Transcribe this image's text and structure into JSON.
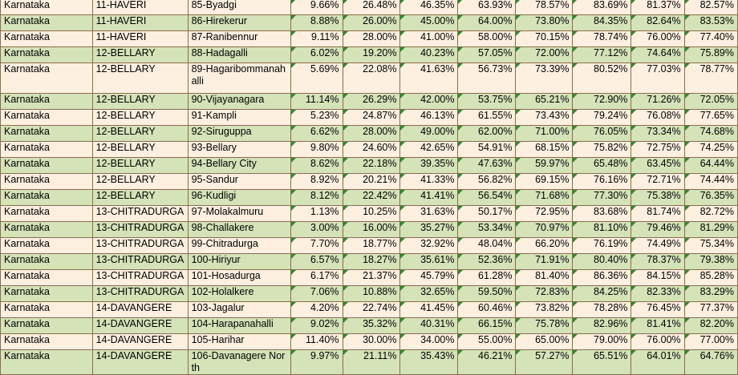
{
  "table": {
    "rows": [
      [
        "Karnataka",
        "11-HAVERI",
        "85-Byadgi",
        "9.66%",
        "26.48%",
        "46.35%",
        "63.93%",
        "78.57%",
        "83.69%",
        "81.37%",
        "82.57%"
      ],
      [
        "Karnataka",
        "11-HAVERI",
        "86-Hirekerur",
        "8.88%",
        "26.00%",
        "45.00%",
        "64.00%",
        "73.80%",
        "84.35%",
        "82.64%",
        "83.53%"
      ],
      [
        "Karnataka",
        "11-HAVERI",
        "87-Ranibennur",
        "9.11%",
        "28.00%",
        "41.00%",
        "58.00%",
        "70.15%",
        "78.74%",
        "76.00%",
        "77.40%"
      ],
      [
        "Karnataka",
        "12-BELLARY",
        "88-Hadagalli",
        "6.02%",
        "19.20%",
        "40.23%",
        "57.05%",
        "72.00%",
        "77.12%",
        "74.64%",
        "75.89%"
      ],
      [
        "Karnataka",
        "12-BELLARY",
        "89-Hagaribommanahalli",
        "5.69%",
        "22.08%",
        "41.63%",
        "56.73%",
        "73.39%",
        "80.52%",
        "77.03%",
        "78.77%"
      ],
      [
        "Karnataka",
        "12-BELLARY",
        "90-Vijayanagara",
        "11.14%",
        "26.29%",
        "42.00%",
        "53.75%",
        "65.21%",
        "72.90%",
        "71.26%",
        "72.05%"
      ],
      [
        "Karnataka",
        "12-BELLARY",
        "91-Kampli",
        "5.23%",
        "24.87%",
        "46.13%",
        "61.55%",
        "73.43%",
        "79.24%",
        "76.08%",
        "77.65%"
      ],
      [
        "Karnataka",
        "12-BELLARY",
        "92-Siruguppa",
        "6.62%",
        "28.00%",
        "49.00%",
        "62.00%",
        "71.00%",
        "76.05%",
        "73.34%",
        "74.68%"
      ],
      [
        "Karnataka",
        "12-BELLARY",
        "93-Bellary",
        "9.80%",
        "24.60%",
        "42.65%",
        "54.91%",
        "68.15%",
        "75.82%",
        "72.75%",
        "74.25%"
      ],
      [
        "Karnataka",
        "12-BELLARY",
        "94-Bellary City",
        "8.62%",
        "22.18%",
        "39.35%",
        "47.63%",
        "59.97%",
        "65.48%",
        "63.45%",
        "64.44%"
      ],
      [
        "Karnataka",
        "12-BELLARY",
        "95-Sandur",
        "8.92%",
        "20.21%",
        "41.33%",
        "56.82%",
        "69.15%",
        "76.16%",
        "72.71%",
        "74.44%"
      ],
      [
        "Karnataka",
        "12-BELLARY",
        "96-Kudligi",
        "8.12%",
        "22.42%",
        "41.41%",
        "56.54%",
        "71.68%",
        "77.30%",
        "75.38%",
        "76.35%"
      ],
      [
        "Karnataka",
        "13-CHITRADURGA",
        "97-Molakalmuru",
        "1.13%",
        "10.25%",
        "31.63%",
        "50.17%",
        "72.95%",
        "83.68%",
        "81.74%",
        "82.72%"
      ],
      [
        "Karnataka",
        "13-CHITRADURGA",
        "98-Challakere",
        "3.00%",
        "16.00%",
        "35.27%",
        "53.34%",
        "70.97%",
        "81.10%",
        "79.46%",
        "81.29%"
      ],
      [
        "Karnataka",
        "13-CHITRADURGA",
        "99-Chitradurga",
        "7.70%",
        "18.77%",
        "32.92%",
        "48.04%",
        "66.20%",
        "76.19%",
        "74.49%",
        "75.34%"
      ],
      [
        "Karnataka",
        "13-CHITRADURGA",
        "100-Hiriyur",
        "6.57%",
        "18.27%",
        "35.61%",
        "52.36%",
        "71.91%",
        "80.40%",
        "78.37%",
        "79.38%"
      ],
      [
        "Karnataka",
        "13-CHITRADURGA",
        "101-Hosadurga",
        "6.17%",
        "21.37%",
        "45.79%",
        "61.28%",
        "81.40%",
        "86.36%",
        "84.15%",
        "85.28%"
      ],
      [
        "Karnataka",
        "13-CHITRADURGA",
        "102-Holalkere",
        "7.06%",
        "10.88%",
        "32.65%",
        "59.50%",
        "72.83%",
        "84.25%",
        "82.33%",
        "83.29%"
      ],
      [
        "Karnataka",
        "14-DAVANGERE",
        "103-Jagalur",
        "4.20%",
        "22.74%",
        "41.45%",
        "60.46%",
        "73.82%",
        "78.28%",
        "76.45%",
        "77.37%"
      ],
      [
        "Karnataka",
        "14-DAVANGERE",
        "104-Harapanahalli",
        "9.02%",
        "35.32%",
        "40.31%",
        "66.15%",
        "75.78%",
        "82.96%",
        "81.41%",
        "82.20%"
      ],
      [
        "Karnataka",
        "14-DAVANGERE",
        "105-Harihar",
        "11.40%",
        "30.00%",
        "34.00%",
        "55.00%",
        "65.00%",
        "79.00%",
        "76.00%",
        "77.00%"
      ],
      [
        "Karnataka",
        "14-DAVANGERE",
        "106-Davanagere North",
        "9.97%",
        "21.11%",
        "35.43%",
        "46.21%",
        "57.27%",
        "65.51%",
        "64.01%",
        "64.76%"
      ]
    ]
  },
  "colors": {
    "row_odd": "#fdf0e0",
    "row_even": "#d5e3b9",
    "border": "#8b6d4a",
    "cell_marker": "#2e8b2e"
  }
}
